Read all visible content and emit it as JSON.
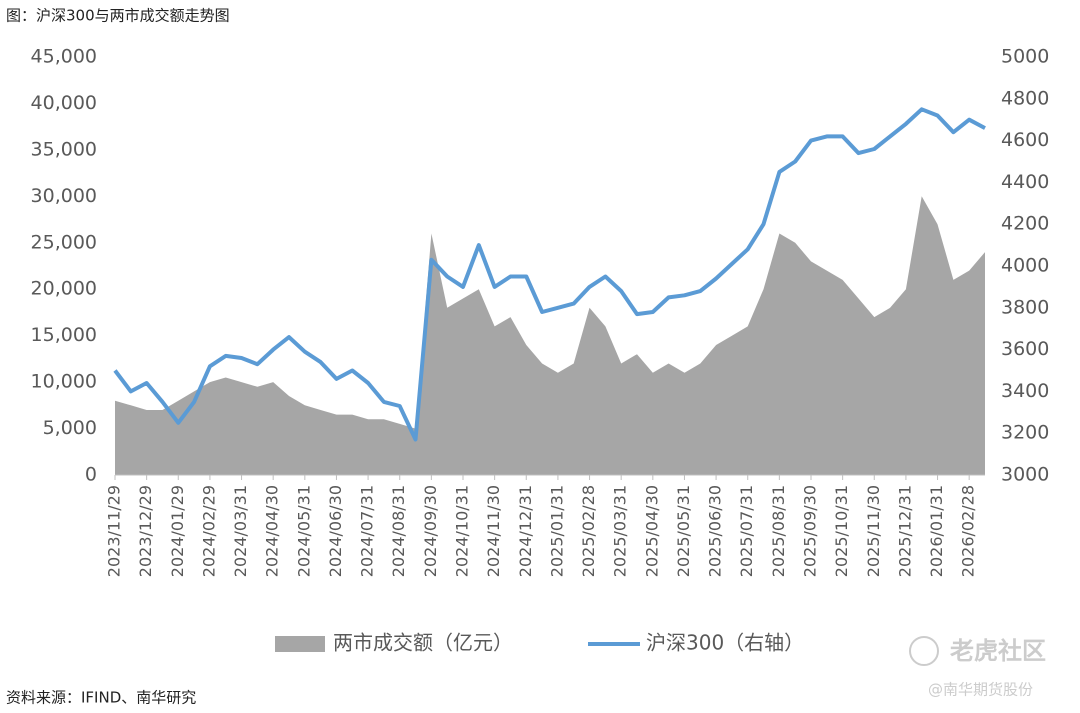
{
  "chart_data": {
    "type": "combo",
    "title": "图：沪深300与两市成交额走势图",
    "source": "资料来源：IFIND、南华研究",
    "categories": [
      "2023/11/29",
      null,
      "2023/12/29",
      null,
      "2024/01/29",
      null,
      "2024/02/29",
      null,
      "2024/03/31",
      null,
      "2024/04/30",
      null,
      "2024/05/31",
      null,
      "2024/06/30",
      null,
      "2024/07/31",
      null,
      "2024/08/31",
      null,
      "2024/09/30",
      null,
      "2024/10/31",
      null,
      "2024/11/30",
      null,
      "2024/12/31",
      null,
      "2025/01/31",
      null,
      "2025/02/28",
      null,
      "2025/03/31",
      null,
      "2025/04/30",
      null,
      "2025/05/31",
      null,
      "2025/06/30",
      null,
      "2025/07/31",
      null,
      "2025/08/31",
      null,
      "2025/09/30",
      null,
      "2025/10/31",
      null,
      "2025/11/30",
      null,
      "2025/12/31",
      null,
      "2026/01/31",
      null,
      "2026/02/28",
      null
    ],
    "series": [
      {
        "name": "两市成交额（亿元）",
        "type": "area",
        "color": "#a6a6a6",
        "axis": "y",
        "values": [
          8000,
          7500,
          7000,
          7000,
          8000,
          9000,
          10000,
          10500,
          10000,
          9500,
          10000,
          8500,
          7500,
          7000,
          6500,
          6500,
          6000,
          6000,
          5500,
          5000,
          26000,
          18000,
          19000,
          20000,
          16000,
          17000,
          14000,
          12000,
          11000,
          12000,
          18000,
          16000,
          12000,
          13000,
          11000,
          12000,
          11000,
          12000,
          14000,
          15000,
          16000,
          20000,
          26000,
          25000,
          23000,
          22000,
          21000,
          19000,
          17000,
          18000,
          20000,
          30000,
          27000,
          21000,
          22000,
          24000
        ]
      },
      {
        "name": "沪深300（右轴）",
        "type": "line",
        "color": "#5b9bd5",
        "axis": "y2",
        "values": [
          3500,
          3400,
          3440,
          3350,
          3250,
          3350,
          3520,
          3570,
          3560,
          3530,
          3600,
          3660,
          3590,
          3540,
          3460,
          3500,
          3440,
          3350,
          3330,
          3170,
          4030,
          3950,
          3900,
          4100,
          3900,
          3950,
          3950,
          3780,
          3800,
          3820,
          3900,
          3950,
          3880,
          3770,
          3780,
          3850,
          3860,
          3880,
          3940,
          4010,
          4080,
          4200,
          4450,
          4500,
          4600,
          4620,
          4620,
          4540,
          4560,
          4620,
          4680,
          4750,
          4720,
          4640,
          4700,
          4660
        ]
      }
    ],
    "ylim": [
      0,
      45000
    ],
    "yticks": [
      0,
      {
        "value": 5000,
        "label": "5,000"
      },
      {
        "value": 10000,
        "label": "10,000"
      },
      {
        "value": 15000,
        "label": "15,000"
      },
      {
        "value": 20000,
        "label": "20,000"
      },
      {
        "value": 25000,
        "label": "25,000"
      },
      {
        "value": 30000,
        "label": "30,000"
      },
      {
        "value": 35000,
        "label": "35,000"
      },
      {
        "value": 40000,
        "label": "40,000"
      },
      {
        "value": 45000,
        "label": "45,000"
      }
    ],
    "y2lim": [
      3000,
      5000
    ],
    "y2ticks": [
      3000,
      3200,
      3400,
      3600,
      3800,
      4000,
      4200,
      4400,
      4600,
      4800,
      5000
    ],
    "grid": false,
    "legend": "bottom"
  },
  "watermark": {
    "logo": "老虎社区",
    "handle": "@南华期货股份"
  }
}
